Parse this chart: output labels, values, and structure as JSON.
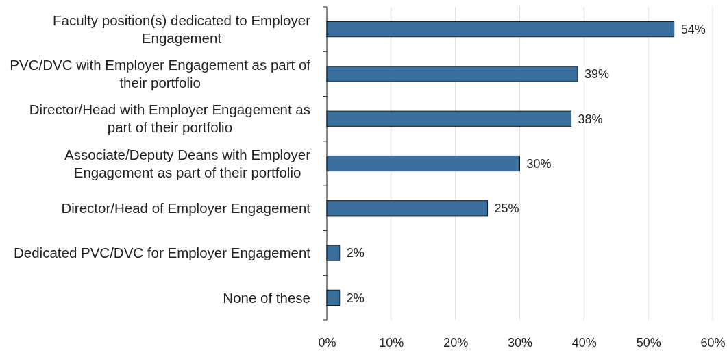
{
  "chart_data": {
    "type": "bar",
    "orientation": "horizontal",
    "categories": [
      "Faculty position(s) dedicated to Employer Engagement",
      "PVC/DVC with Employer Engagement as part of their portfolio",
      "Director/Head with Employer Engagement as part of their portfolio",
      "Associate/Deputy Deans with Employer Engagement as part of their portfolio",
      "Director/Head of Employer Engagement",
      "Dedicated PVC/DVC for Employer Engagement",
      "None of these"
    ],
    "values": [
      54,
      39,
      38,
      30,
      25,
      2,
      2
    ],
    "color": "#3a6f9e",
    "value_labels": [
      "54%",
      "39%",
      "38%",
      "30%",
      "25%",
      "2%",
      "2%"
    ],
    "xlim": [
      0,
      60
    ],
    "xticks": [
      {
        "value": 0,
        "label": "0%"
      },
      {
        "value": 10,
        "label": "10%"
      },
      {
        "value": 20,
        "label": "20%"
      },
      {
        "value": 30,
        "label": "30%"
      },
      {
        "value": 40,
        "label": "40%"
      },
      {
        "value": 50,
        "label": "50%"
      },
      {
        "value": 60,
        "label": "60%"
      }
    ],
    "grid": "x"
  }
}
